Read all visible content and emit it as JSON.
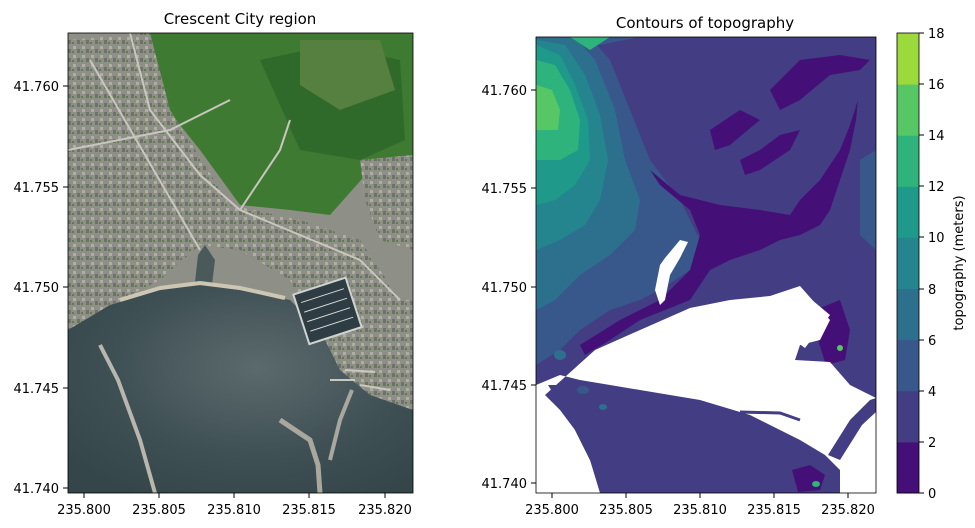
{
  "chart_data": [
    {
      "type": "image",
      "title": "Crescent City region",
      "xlim": [
        235.7978,
        235.8207
      ],
      "ylim": [
        41.7398,
        41.7627
      ],
      "x_ticks": [
        "235.800",
        "235.805",
        "235.810",
        "235.815",
        "235.820"
      ],
      "x_tick_values": [
        235.8,
        235.805,
        235.81,
        235.815,
        235.82
      ],
      "y_ticks": [
        "41.740",
        "41.745",
        "41.750",
        "41.755",
        "41.760"
      ],
      "y_tick_values": [
        41.74,
        41.745,
        41.75,
        41.755,
        41.76
      ],
      "colors": {
        "water": "#3e5257",
        "land": "#9a9c8f",
        "vegetation": "#3f7a33",
        "roads": "#c8c6be"
      }
    },
    {
      "type": "heatmap",
      "title": "Contours of topography",
      "xlim": [
        235.7978,
        235.8207
      ],
      "ylim": [
        41.7398,
        41.7627
      ],
      "x_ticks": [
        "235.800",
        "235.805",
        "235.810",
        "235.815",
        "235.820"
      ],
      "x_tick_values": [
        235.8,
        235.805,
        235.81,
        235.815,
        235.82
      ],
      "y_ticks": [
        "41.740",
        "41.745",
        "41.750",
        "41.755",
        "41.760"
      ],
      "y_tick_values": [
        41.74,
        41.745,
        41.75,
        41.755,
        41.76
      ],
      "colorbar": {
        "label": "topography (meters)",
        "levels": [
          0,
          2,
          4,
          6,
          8,
          10,
          12,
          14,
          16,
          18
        ],
        "tick_labels": [
          "0",
          "2",
          "4",
          "6",
          "8",
          "10",
          "12",
          "14",
          "16",
          "18"
        ],
        "colors": [
          "#440f76",
          "#433d84",
          "#38588c",
          "#2d708e",
          "#25858e",
          "#1f9a8a",
          "#2eb37c",
          "#57c765",
          "#9cd93b",
          "#dde318"
        ]
      }
    }
  ]
}
